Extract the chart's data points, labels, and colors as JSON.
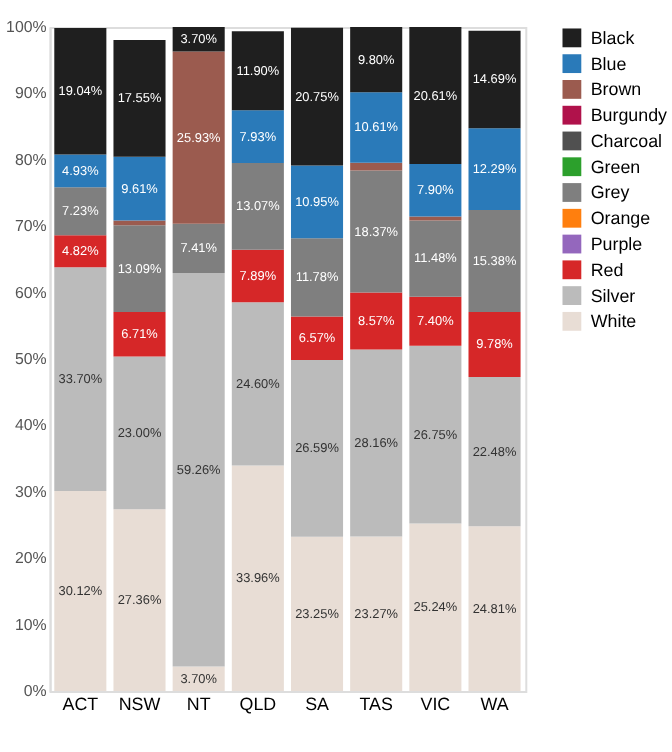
{
  "chart_data": {
    "type": "bar",
    "stacked": true,
    "categories": [
      "ACT",
      "NSW",
      "NT",
      "QLD",
      "SA",
      "TAS",
      "VIC",
      "WA"
    ],
    "ylim": [
      0,
      100
    ],
    "yticks": [
      {
        "value": 0,
        "label": "0%"
      },
      {
        "value": 10,
        "label": "10%"
      },
      {
        "value": 20,
        "label": "20%"
      },
      {
        "value": 30,
        "label": "30%"
      },
      {
        "value": 40,
        "label": "40%"
      },
      {
        "value": 50,
        "label": "50%"
      },
      {
        "value": 60,
        "label": "60%"
      },
      {
        "value": 70,
        "label": "70%"
      },
      {
        "value": 80,
        "label": "80%"
      },
      {
        "value": 90,
        "label": "90%"
      },
      {
        "value": 100,
        "label": "100%"
      }
    ],
    "legend": "right",
    "grid": false,
    "series": [
      {
        "name": "White",
        "color": "#e8ddd5",
        "values": [
          30.12,
          27.36,
          3.7,
          33.96,
          23.25,
          23.27,
          25.24,
          24.81
        ],
        "value_labels": [
          "30.12%",
          "27.36%",
          "3.70%",
          "33.96%",
          "23.25%",
          "23.27%",
          "25.24%",
          "24.81%"
        ]
      },
      {
        "name": "Silver",
        "color": "#bbbbbb",
        "values": [
          33.7,
          23.0,
          59.26,
          24.6,
          26.59,
          28.16,
          26.75,
          22.48
        ],
        "value_labels": [
          "33.70%",
          "23.00%",
          "59.26%",
          "24.60%",
          "26.59%",
          "28.16%",
          "26.75%",
          "22.48%"
        ]
      },
      {
        "name": "Red",
        "color": "#d62728",
        "values": [
          4.82,
          6.71,
          null,
          7.89,
          6.57,
          8.57,
          7.4,
          9.78
        ],
        "value_labels": [
          "4.82%",
          "6.71%",
          null,
          "7.89%",
          "6.57%",
          "8.57%",
          "7.40%",
          "9.78%"
        ]
      },
      {
        "name": "Purple",
        "color": "#9467bd",
        "values": [
          null,
          null,
          null,
          null,
          null,
          null,
          null,
          null
        ]
      },
      {
        "name": "Orange",
        "color": "#ff7f0e",
        "values": [
          null,
          null,
          null,
          null,
          null,
          null,
          null,
          null
        ]
      },
      {
        "name": "Grey",
        "color": "#7f7f7f",
        "values": [
          7.23,
          13.09,
          7.41,
          13.07,
          11.78,
          18.37,
          11.48,
          15.38
        ],
        "value_labels": [
          "7.23%",
          "13.09%",
          "7.41%",
          "13.07%",
          "11.78%",
          "18.37%",
          "11.48%",
          "15.38%"
        ]
      },
      {
        "name": "Green",
        "color": "#2ca02c",
        "values": [
          null,
          null,
          null,
          null,
          null,
          null,
          null,
          null
        ]
      },
      {
        "name": "Charcoal",
        "color": "#505050",
        "values": [
          null,
          null,
          null,
          null,
          null,
          null,
          null,
          null
        ]
      },
      {
        "name": "Burgundy",
        "color": "#b0124b",
        "values": [
          null,
          null,
          null,
          null,
          null,
          null,
          null,
          null
        ]
      },
      {
        "name": "Brown",
        "color": "#9b5b4f",
        "values": [
          null,
          0.7,
          25.93,
          null,
          null,
          1.2,
          0.6,
          null
        ],
        "value_labels": [
          null,
          null,
          "25.93%",
          null,
          null,
          null,
          null,
          null
        ]
      },
      {
        "name": "Blue",
        "color": "#2a7ab9",
        "values": [
          4.93,
          9.61,
          null,
          7.93,
          10.95,
          10.61,
          7.9,
          12.29
        ],
        "value_labels": [
          "4.93%",
          "9.61%",
          null,
          "7.93%",
          "10.95%",
          "10.61%",
          "7.90%",
          "12.29%"
        ]
      },
      {
        "name": "Black",
        "color": "#1f1f1f",
        "values": [
          19.04,
          17.55,
          3.7,
          11.9,
          20.75,
          9.8,
          20.61,
          14.69
        ],
        "value_labels": [
          "19.04%",
          "17.55%",
          "3.70%",
          "11.90%",
          "20.75%",
          "9.80%",
          "20.61%",
          "14.69%"
        ]
      }
    ]
  }
}
